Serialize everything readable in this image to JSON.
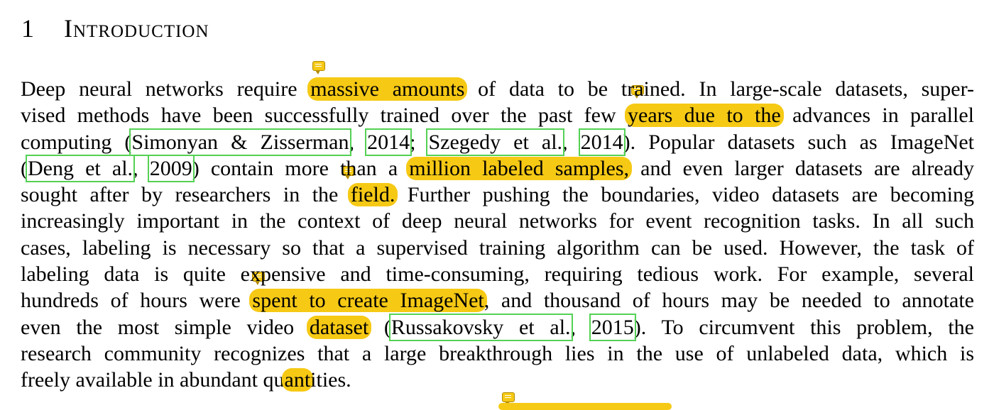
{
  "section": {
    "number": "1",
    "title": "Introduction"
  },
  "paragraph": {
    "l1": {
      "a": "Deep neural networks require ",
      "h1": "massive amounts",
      "b": " of data to be trained. In large-scale datasets, super-"
    },
    "l2": {
      "a": "vised methods have been successfully trained over the past few ",
      "h1": "years due to the",
      "b": " advances in parallel"
    },
    "l3": {
      "a": "computing (",
      "c1": "Simonyan & Zisserman",
      "b": ", ",
      "c2": "2014",
      "c": "; ",
      "c3": "Szegedy et al.",
      "d": ", ",
      "c4": "2014",
      "e": "). Popular datasets such as ImageNet"
    },
    "l4": {
      "a": "(",
      "c1": "Deng et al.",
      "b": ", ",
      "c2": "2009",
      "c": ") contain more than a ",
      "h1": "million labeled samples,",
      "d": " and even larger datasets are already"
    },
    "l5": {
      "a": "sought after by researchers in the ",
      "h1": "field.",
      "b": " Further pushing the boundaries, video datasets are becoming"
    },
    "l6": "increasingly important in the context of deep neural networks for event recognition tasks. In all such",
    "l7": "cases, labeling is necessary so that a supervised training algorithm can be used. However, the task of",
    "l8": "labeling data is quite expensive and time-consuming, requiring tedious work. For example, several",
    "l9": {
      "a": "hundreds of hours were ",
      "h1": "spent to create ImageNet",
      "b": ", and thousand of hours may be needed to annotate"
    },
    "l10": {
      "a": "even the most simple video ",
      "h1": "dataset",
      "b": " (",
      "c1": "Russakovsky et al.",
      "c": ", ",
      "c2": "2015",
      "d": "). To circumvent this problem, the"
    },
    "l11": "research community recognizes that a large breakthrough lies in the use of unlabeled data, which is",
    "l12": {
      "a": "freely available in abundant qu",
      "h1": "ant",
      "b": "ities."
    }
  },
  "colors": {
    "highlight": "#f6c915",
    "citation_box": "#54d154"
  },
  "icons": [
    "comment-note-icon"
  ]
}
